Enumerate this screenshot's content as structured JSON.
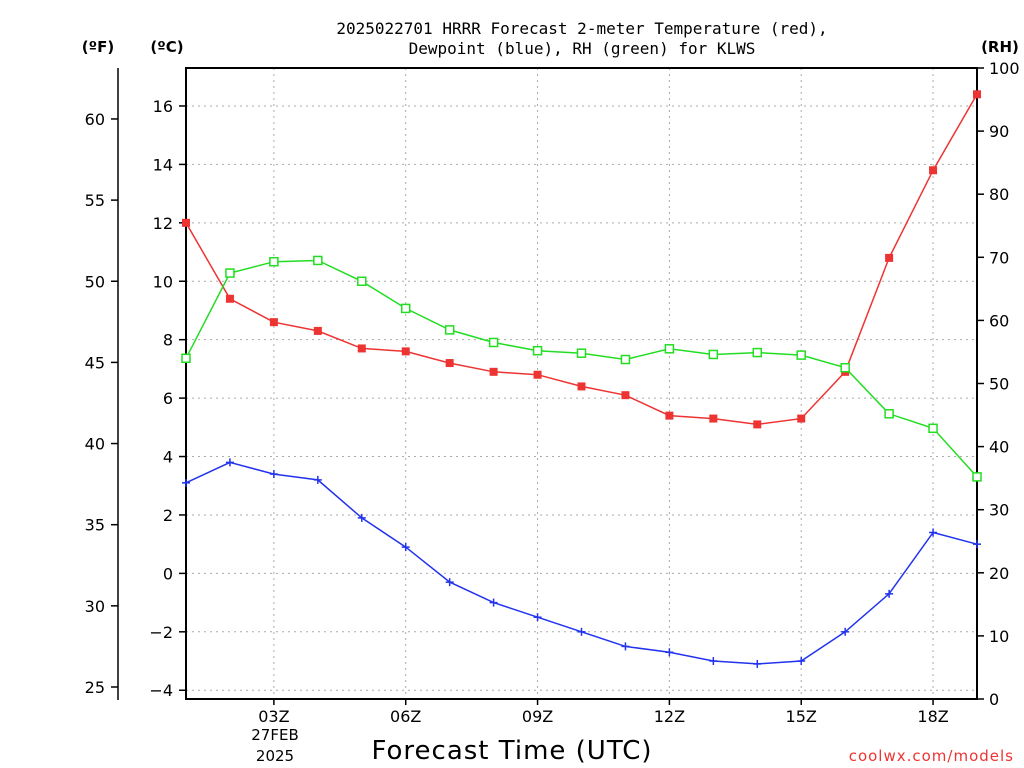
{
  "chart_data": {
    "type": "line",
    "title_line1": "2025022701 HRRR Forecast 2-meter Temperature (red),",
    "title_line2": "Dewpoint (blue), RH (green) for KLWS",
    "xlabel": "Forecast Time (UTC)",
    "unit_left_f": "(ºF)",
    "unit_left_c": "(ºC)",
    "unit_right": "(RH)",
    "credit": "coolwx.com/models",
    "x_hours": [
      1,
      2,
      3,
      4,
      5,
      6,
      7,
      8,
      9,
      10,
      11,
      12,
      13,
      14,
      15,
      16,
      17,
      18,
      19
    ],
    "x_ticks": [
      {
        "hour": 3,
        "label": "03Z"
      },
      {
        "hour": 6,
        "label": "06Z"
      },
      {
        "hour": 9,
        "label": "09Z"
      },
      {
        "hour": 12,
        "label": "12Z"
      },
      {
        "hour": 15,
        "label": "15Z"
      },
      {
        "hour": 18,
        "label": "18Z"
      }
    ],
    "date_label_1": "27FEB",
    "date_label_2": "2025",
    "xlim": [
      1,
      19
    ],
    "ylim_c": [
      -4.3,
      17.3
    ],
    "c_ticks": [
      -4,
      -2,
      0,
      2,
      4,
      6,
      8,
      10,
      12,
      14,
      16
    ],
    "f_ticks": [
      25,
      30,
      35,
      40,
      45,
      50,
      55,
      60
    ],
    "rh_ticks": [
      0,
      10,
      20,
      30,
      40,
      50,
      60,
      70,
      80,
      90,
      100
    ],
    "rh_lim": [
      0,
      100
    ],
    "series": [
      {
        "name": "Temperature",
        "axis": "c",
        "color": "#ee3333",
        "marker": "filled-square",
        "values": [
          12.0,
          9.4,
          8.6,
          8.3,
          7.7,
          7.6,
          7.2,
          6.9,
          6.8,
          6.4,
          6.1,
          5.4,
          5.3,
          5.1,
          5.3,
          6.9,
          10.8,
          13.8,
          16.4
        ]
      },
      {
        "name": "Dewpoint",
        "axis": "c",
        "color": "#2233ee",
        "marker": "plus",
        "values": [
          3.1,
          3.8,
          3.4,
          3.2,
          1.9,
          0.9,
          -0.3,
          -1.0,
          -1.5,
          -2.0,
          -2.5,
          -2.7,
          -3.0,
          -3.1,
          -3.0,
          -2.0,
          -0.7,
          1.4,
          1.0
        ]
      },
      {
        "name": "RH",
        "axis": "rh",
        "color": "#22dd22",
        "marker": "open-square",
        "values": [
          54,
          67.5,
          69.3,
          69.5,
          66.2,
          61.9,
          58.5,
          56.5,
          55.2,
          54.8,
          53.8,
          55.5,
          54.6,
          54.9,
          54.5,
          52.5,
          45.2,
          42.9,
          35.2
        ]
      }
    ],
    "grid": true
  }
}
